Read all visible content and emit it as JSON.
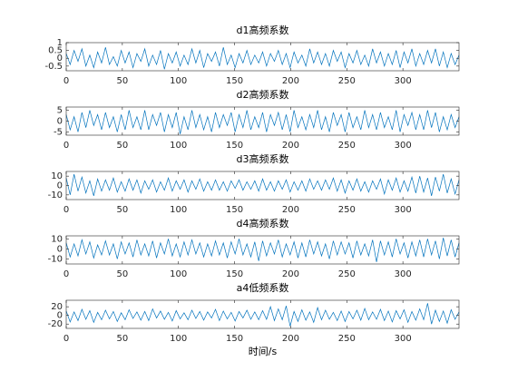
{
  "chart_data": [
    {
      "type": "line",
      "title": "d1高频系数",
      "color": "#0072bd",
      "xlim": [
        0,
        350
      ],
      "xticks": [
        0,
        50,
        100,
        150,
        200,
        250,
        300
      ],
      "ylim": [
        -0.8,
        1
      ],
      "yticks": [
        -0.5,
        0,
        0.5,
        1
      ],
      "x": [
        0,
        3.5,
        7,
        10.5,
        14,
        17.5,
        21,
        24.5,
        28,
        31.5,
        35,
        38.5,
        42,
        45.5,
        49,
        52.5,
        56,
        59.5,
        63,
        66.5,
        70,
        73.5,
        77,
        80.5,
        84,
        87.5,
        91,
        94.5,
        98,
        101.5,
        105,
        108.5,
        112,
        115.5,
        119,
        122.5,
        126,
        129.5,
        133,
        136.5,
        140,
        143.5,
        147,
        150.5,
        154,
        157.5,
        161,
        164.5,
        168,
        171.5,
        175,
        178.5,
        182,
        185.5,
        189,
        192.5,
        196,
        199.5,
        203,
        206.5,
        210,
        213.5,
        217,
        220.5,
        224,
        227.5,
        231,
        234.5,
        238,
        241.5,
        245,
        248.5,
        252,
        255.5,
        259,
        262.5,
        266,
        269.5,
        273,
        276.5,
        280,
        283.5,
        287,
        290.5,
        294,
        297.5,
        301,
        304.5,
        308,
        311.5,
        315,
        318.5,
        322,
        325.5,
        329,
        332.5,
        336,
        339.5,
        343,
        346.5,
        350
      ],
      "values": [
        0.3,
        -0.4,
        0.5,
        -0.2,
        0.6,
        -0.5,
        0.2,
        -0.6,
        0.4,
        -0.3,
        0.7,
        -0.4,
        0.1,
        -0.5,
        0.5,
        -0.3,
        0.4,
        -0.6,
        0.3,
        -0.2,
        0.6,
        -0.5,
        0.2,
        -0.4,
        0.5,
        -0.7,
        0.3,
        -0.3,
        0.4,
        -0.5,
        0.2,
        -0.4,
        0.6,
        -0.3,
        0.5,
        -0.6,
        0.3,
        -0.2,
        0.4,
        -0.5,
        0.7,
        -0.4,
        0.2,
        -0.6,
        0.3,
        -0.3,
        0.5,
        -0.4,
        0.2,
        -0.3,
        0.4,
        -0.5,
        0.3,
        -0.2,
        0.5,
        -0.4,
        0.3,
        -0.6,
        0.4,
        -0.3,
        0.2,
        -0.5,
        0.6,
        -0.3,
        0.4,
        -0.4,
        0.3,
        -0.5,
        0.5,
        -0.2,
        0.4,
        -0.6,
        0.3,
        -0.3,
        0.5,
        -0.4,
        0.2,
        -0.5,
        0.6,
        -0.3,
        0.4,
        -0.5,
        0.3,
        -0.4,
        0.5,
        -0.6,
        0.4,
        -0.3,
        0.6,
        -0.5,
        0.3,
        -0.4,
        0.5,
        -0.3,
        0.6,
        -0.5,
        0.4,
        -0.6,
        0.3,
        -0.4,
        0.2
      ]
    },
    {
      "type": "line",
      "title": "d2高频系数",
      "color": "#0072bd",
      "xlim": [
        0,
        350
      ],
      "xticks": [
        0,
        50,
        100,
        150,
        200,
        250,
        300
      ],
      "ylim": [
        -6.5,
        6.5
      ],
      "yticks": [
        -5,
        0,
        5
      ],
      "x": [
        0,
        3.5,
        7,
        10.5,
        14,
        17.5,
        21,
        24.5,
        28,
        31.5,
        35,
        38.5,
        42,
        45.5,
        49,
        52.5,
        56,
        59.5,
        63,
        66.5,
        70,
        73.5,
        77,
        80.5,
        84,
        87.5,
        91,
        94.5,
        98,
        101.5,
        105,
        108.5,
        112,
        115.5,
        119,
        122.5,
        126,
        129.5,
        133,
        136.5,
        140,
        143.5,
        147,
        150.5,
        154,
        157.5,
        161,
        164.5,
        168,
        171.5,
        175,
        178.5,
        182,
        185.5,
        189,
        192.5,
        196,
        199.5,
        203,
        206.5,
        210,
        213.5,
        217,
        220.5,
        224,
        227.5,
        231,
        234.5,
        238,
        241.5,
        245,
        248.5,
        252,
        255.5,
        259,
        262.5,
        266,
        269.5,
        273,
        276.5,
        280,
        283.5,
        287,
        290.5,
        294,
        297.5,
        301,
        304.5,
        308,
        311.5,
        315,
        318.5,
        322,
        325.5,
        329,
        332.5,
        336,
        339.5,
        343,
        346.5,
        350
      ],
      "values": [
        3,
        -4,
        2,
        -5,
        4,
        -3,
        5,
        -2,
        3,
        -4,
        4,
        -3,
        2,
        -5,
        3,
        -4,
        5,
        -3,
        2,
        -4,
        5,
        -4,
        3,
        -2,
        4,
        -5,
        3,
        -3,
        4,
        -6,
        2,
        -4,
        5,
        -3,
        3,
        -4,
        2,
        -5,
        4,
        -3,
        3,
        -2,
        4,
        -5,
        3,
        -3,
        5,
        -4,
        2,
        -3,
        4,
        -5,
        3,
        -2,
        4,
        -4,
        3,
        -5,
        5,
        -3,
        2,
        -4,
        3,
        -3,
        5,
        -4,
        2,
        -5,
        4,
        -2,
        3,
        -5,
        4,
        -3,
        2,
        -4,
        5,
        -3,
        3,
        -4,
        4,
        -3,
        2,
        -4,
        5,
        -5,
        3,
        -2,
        4,
        -4,
        3,
        -4,
        5,
        -3,
        4,
        -5,
        2,
        -4,
        3,
        -3,
        2
      ]
    },
    {
      "type": "line",
      "title": "d3高频系数",
      "color": "#0072bd",
      "xlim": [
        0,
        350
      ],
      "xticks": [
        0,
        50,
        100,
        150,
        200,
        250,
        300
      ],
      "ylim": [
        -15,
        15
      ],
      "yticks": [
        -10,
        0,
        10
      ],
      "x": [
        0,
        3.5,
        7,
        10.5,
        14,
        17.5,
        21,
        24.5,
        28,
        31.5,
        35,
        38.5,
        42,
        45.5,
        49,
        52.5,
        56,
        59.5,
        63,
        66.5,
        70,
        73.5,
        77,
        80.5,
        84,
        87.5,
        91,
        94.5,
        98,
        101.5,
        105,
        108.5,
        112,
        115.5,
        119,
        122.5,
        126,
        129.5,
        133,
        136.5,
        140,
        143.5,
        147,
        150.5,
        154,
        157.5,
        161,
        164.5,
        168,
        171.5,
        175,
        178.5,
        182,
        185.5,
        189,
        192.5,
        196,
        199.5,
        203,
        206.5,
        210,
        213.5,
        217,
        220.5,
        224,
        227.5,
        231,
        234.5,
        238,
        241.5,
        245,
        248.5,
        252,
        255.5,
        259,
        262.5,
        266,
        269.5,
        273,
        276.5,
        280,
        283.5,
        287,
        290.5,
        294,
        297.5,
        301,
        304.5,
        308,
        311.5,
        315,
        318.5,
        322,
        325.5,
        329,
        332.5,
        336,
        339.5,
        343,
        346.5,
        350
      ],
      "values": [
        8,
        -10,
        12,
        -6,
        9,
        -8,
        5,
        -11,
        7,
        -6,
        6,
        -5,
        8,
        -7,
        4,
        -6,
        7,
        -5,
        6,
        -8,
        5,
        -4,
        6,
        -7,
        4,
        -5,
        8,
        -6,
        5,
        -4,
        6,
        -7,
        5,
        -4,
        7,
        -6,
        4,
        -5,
        6,
        -5,
        4,
        -6,
        5,
        -3,
        6,
        -5,
        4,
        -4,
        5,
        -6,
        7,
        -5,
        4,
        -6,
        5,
        -4,
        6,
        -7,
        4,
        -5,
        5,
        -6,
        7,
        -4,
        5,
        -5,
        6,
        -4,
        8,
        -6,
        6,
        -8,
        5,
        -5,
        7,
        -6,
        4,
        -7,
        5,
        -4,
        7,
        -9,
        6,
        -5,
        8,
        -7,
        5,
        -6,
        9,
        -8,
        10,
        -7,
        8,
        -11,
        9,
        -6,
        12,
        -8,
        7,
        -9,
        6
      ]
    },
    {
      "type": "line",
      "title": "d4高频系数",
      "color": "#0072bd",
      "xlim": [
        0,
        350
      ],
      "xticks": [
        0,
        50,
        100,
        150,
        200,
        250,
        300
      ],
      "ylim": [
        -15,
        13
      ],
      "yticks": [
        -10,
        0,
        10
      ],
      "x": [
        0,
        3.5,
        7,
        10.5,
        14,
        17.5,
        21,
        24.5,
        28,
        31.5,
        35,
        38.5,
        42,
        45.5,
        49,
        52.5,
        56,
        59.5,
        63,
        66.5,
        70,
        73.5,
        77,
        80.5,
        84,
        87.5,
        91,
        94.5,
        98,
        101.5,
        105,
        108.5,
        112,
        115.5,
        119,
        122.5,
        126,
        129.5,
        133,
        136.5,
        140,
        143.5,
        147,
        150.5,
        154,
        157.5,
        161,
        164.5,
        168,
        171.5,
        175,
        178.5,
        182,
        185.5,
        189,
        192.5,
        196,
        199.5,
        203,
        206.5,
        210,
        213.5,
        217,
        220.5,
        224,
        227.5,
        231,
        234.5,
        238,
        241.5,
        245,
        248.5,
        252,
        255.5,
        259,
        262.5,
        266,
        269.5,
        273,
        276.5,
        280,
        283.5,
        287,
        290.5,
        294,
        297.5,
        301,
        304.5,
        308,
        311.5,
        315,
        318.5,
        322,
        325.5,
        329,
        332.5,
        336,
        339.5,
        343,
        346.5,
        350
      ],
      "values": [
        6,
        -8,
        5,
        -7,
        9,
        -5,
        7,
        -9,
        4,
        -6,
        8,
        -6,
        5,
        -10,
        7,
        -5,
        6,
        -8,
        9,
        -6,
        5,
        -7,
        8,
        -9,
        6,
        -5,
        10,
        -7,
        5,
        -8,
        7,
        -6,
        9,
        -5,
        6,
        -8,
        5,
        -7,
        8,
        -6,
        6,
        -9,
        7,
        -5,
        10,
        -6,
        5,
        -8,
        7,
        -12,
        8,
        -7,
        6,
        -5,
        9,
        -8,
        5,
        -6,
        7,
        -9,
        6,
        -8,
        9,
        -5,
        7,
        -7,
        5,
        -10,
        8,
        -6,
        7,
        -5,
        6,
        -9,
        8,
        -6,
        5,
        -7,
        9,
        -13,
        8,
        -6,
        7,
        -8,
        10,
        -5,
        6,
        -9,
        7,
        -7,
        9,
        -8,
        10,
        -6,
        8,
        -10,
        11,
        -7,
        9,
        -8,
        6
      ]
    },
    {
      "type": "line",
      "title": "a4低频系数",
      "xlabel": "时间/s",
      "color": "#0072bd",
      "xlim": [
        0,
        350
      ],
      "xticks": [
        0,
        50,
        100,
        150,
        200,
        250,
        300
      ],
      "ylim": [
        -30,
        35
      ],
      "yticks": [
        -20,
        0,
        20
      ],
      "x": [
        0,
        3.5,
        7,
        10.5,
        14,
        17.5,
        21,
        24.5,
        28,
        31.5,
        35,
        38.5,
        42,
        45.5,
        49,
        52.5,
        56,
        59.5,
        63,
        66.5,
        70,
        73.5,
        77,
        80.5,
        84,
        87.5,
        91,
        94.5,
        98,
        101.5,
        105,
        108.5,
        112,
        115.5,
        119,
        122.5,
        126,
        129.5,
        133,
        136.5,
        140,
        143.5,
        147,
        150.5,
        154,
        157.5,
        161,
        164.5,
        168,
        171.5,
        175,
        178.5,
        182,
        185.5,
        189,
        192.5,
        196,
        199.5,
        203,
        206.5,
        210,
        213.5,
        217,
        220.5,
        224,
        227.5,
        231,
        234.5,
        238,
        241.5,
        245,
        248.5,
        252,
        255.5,
        259,
        262.5,
        266,
        269.5,
        273,
        276.5,
        280,
        283.5,
        287,
        290.5,
        294,
        297.5,
        301,
        304.5,
        308,
        311.5,
        315,
        318.5,
        322,
        325.5,
        329,
        332.5,
        336,
        339.5,
        343,
        346.5,
        350
      ],
      "values": [
        10,
        -15,
        8,
        -12,
        14,
        -9,
        11,
        -16,
        7,
        -10,
        12,
        -8,
        9,
        -14,
        6,
        -10,
        13,
        -7,
        8,
        -11,
        9,
        -12,
        15,
        -6,
        10,
        -9,
        7,
        -13,
        11,
        -8,
        6,
        -10,
        12,
        -7,
        9,
        -11,
        8,
        -6,
        14,
        -12,
        10,
        -8,
        7,
        -13,
        9,
        -6,
        12,
        -9,
        8,
        -10,
        11,
        -9,
        20,
        -12,
        15,
        -10,
        22,
        -25,
        9,
        -14,
        13,
        -11,
        8,
        -16,
        18,
        -10,
        12,
        -9,
        7,
        -12,
        10,
        -14,
        9,
        -8,
        12,
        -11,
        16,
        -10,
        8,
        -9,
        14,
        -12,
        10,
        -15,
        11,
        -8,
        13,
        -16,
        9,
        -11,
        15,
        -10,
        28,
        -20,
        12,
        -14,
        10,
        -18,
        13,
        -9,
        8
      ]
    }
  ]
}
